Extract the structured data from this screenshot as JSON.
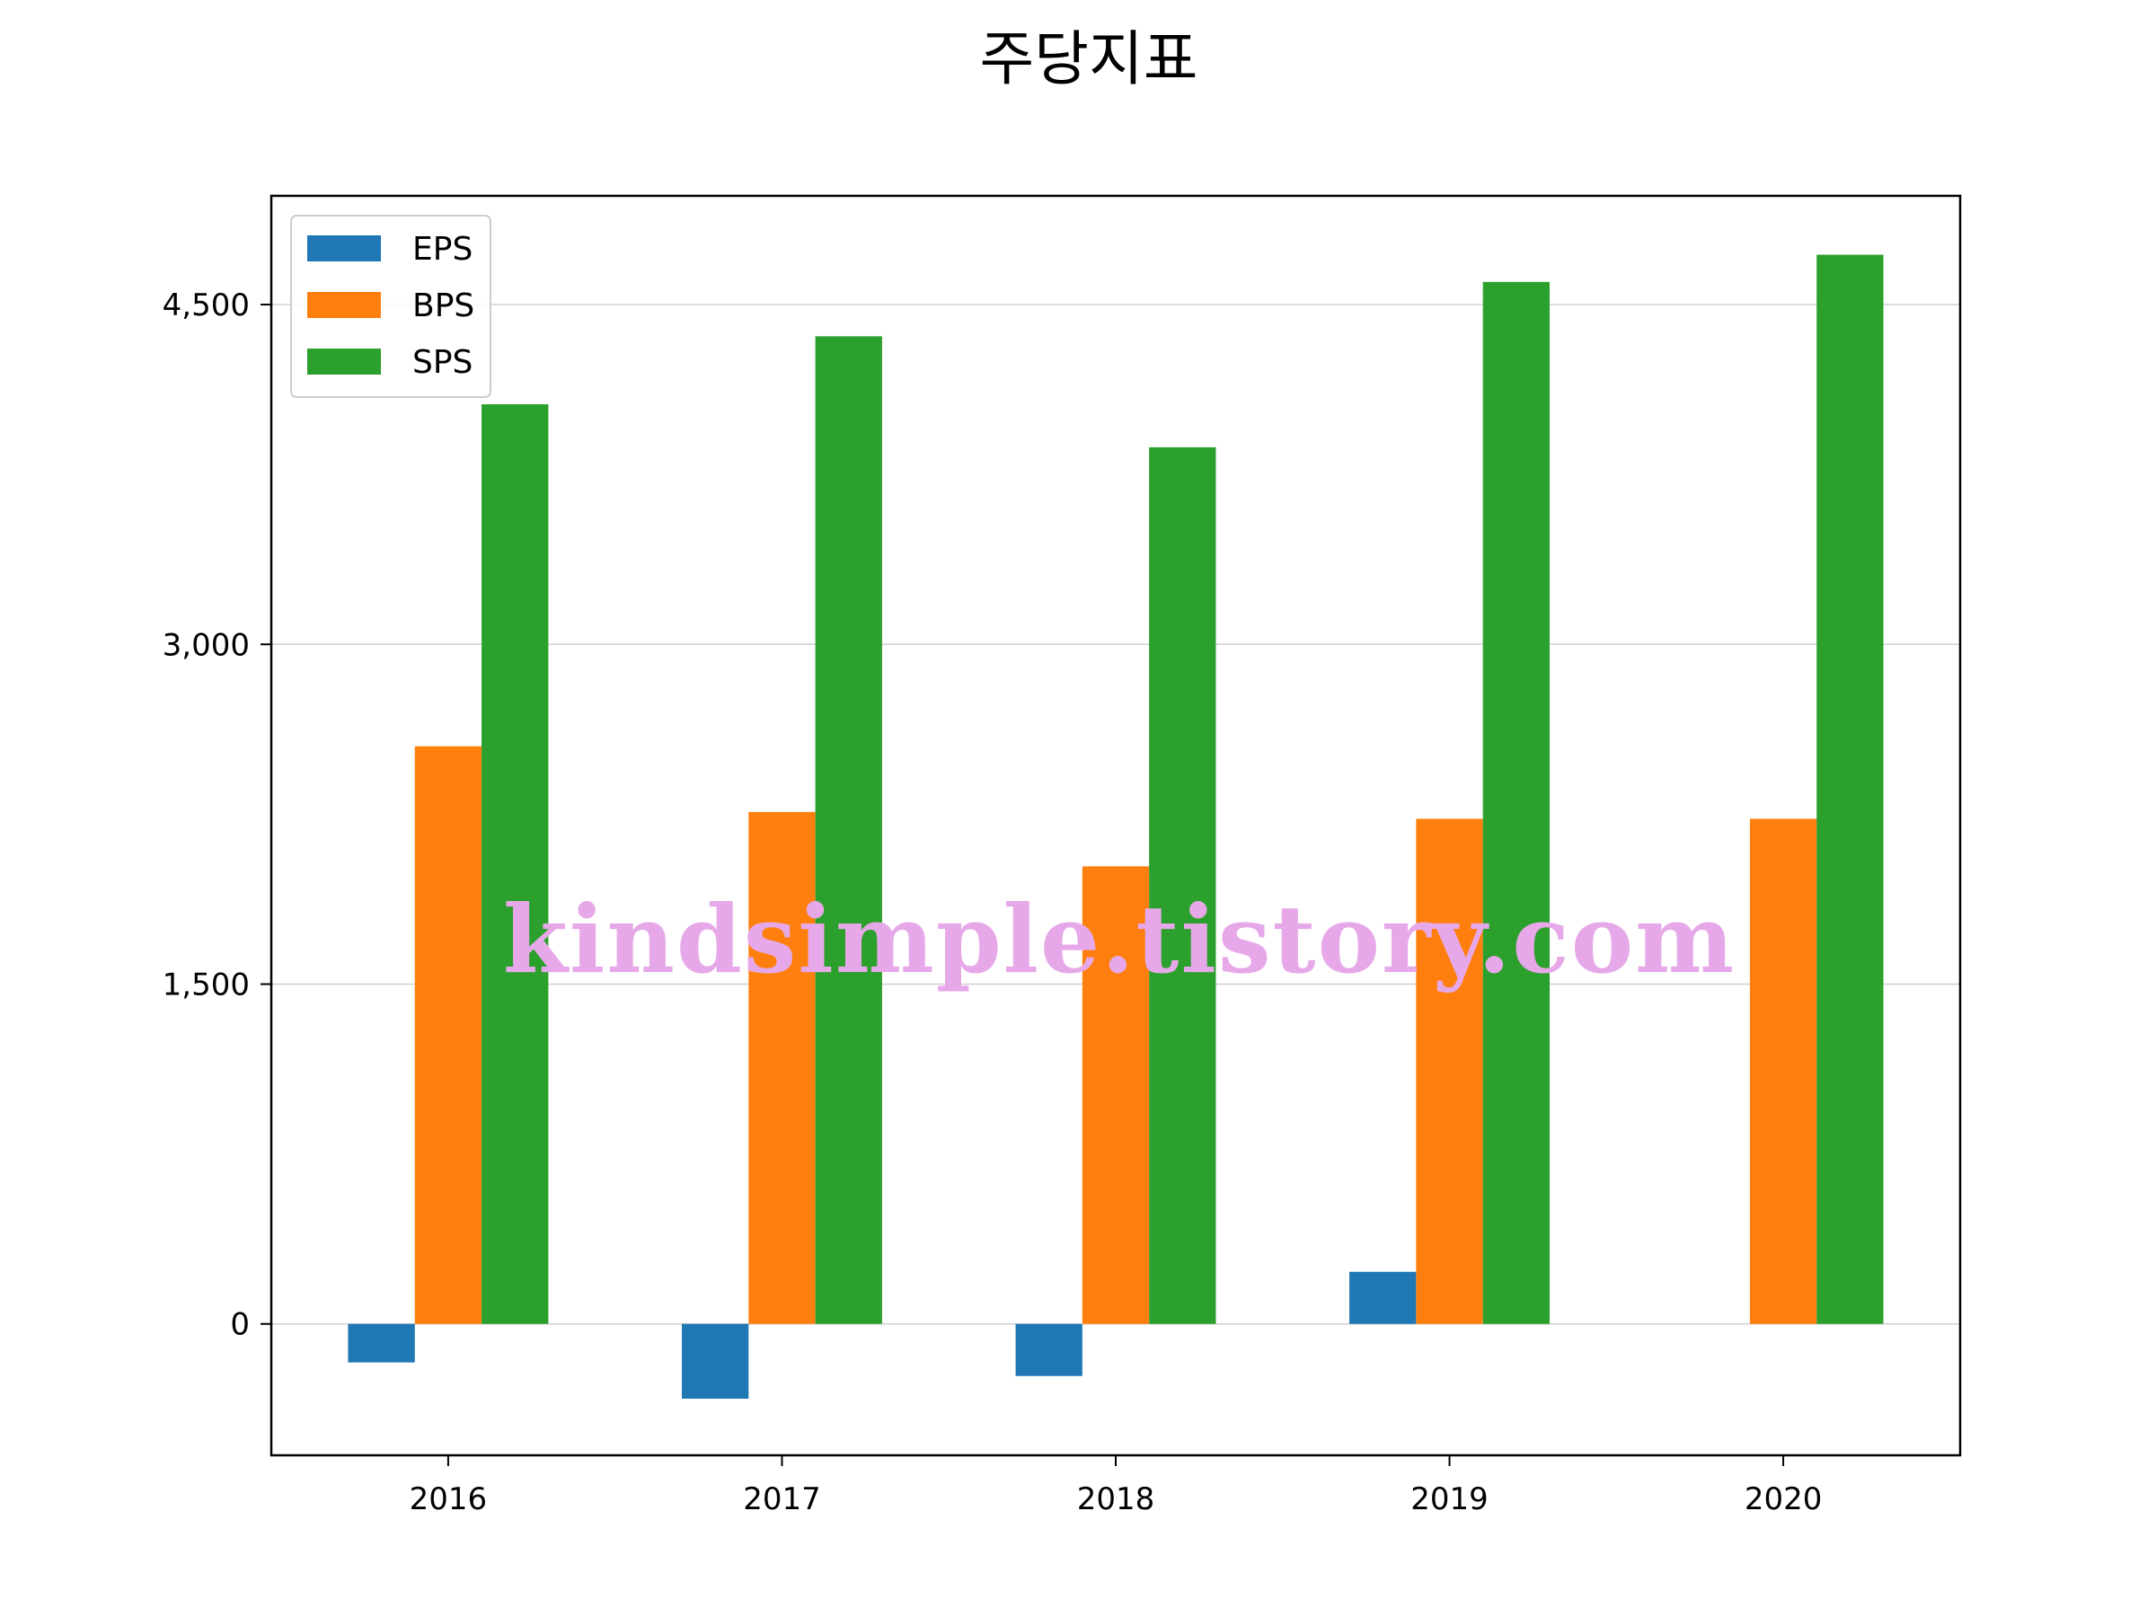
{
  "chart_data": {
    "type": "bar",
    "title": "주당지표",
    "xlabel": "",
    "ylabel": "",
    "categories": [
      "2016",
      "2017",
      "2018",
      "2019",
      "2020"
    ],
    "series": [
      {
        "name": "EPS",
        "color": "#1f77b4",
        "values": [
          -170,
          -330,
          -230,
          230,
          0
        ]
      },
      {
        "name": "BPS",
        "color": "#ff7f0e",
        "values": [
          2550,
          2260,
          2020,
          2230,
          2230
        ]
      },
      {
        "name": "SPS",
        "color": "#2ca02c",
        "values": [
          4060,
          4360,
          3870,
          4600,
          4720
        ]
      }
    ],
    "ylim": [
      -580,
      4980
    ],
    "yticks": [
      0,
      1500,
      3000,
      4500
    ],
    "ytick_labels": [
      "0",
      "1,500",
      "3,000",
      "4,500"
    ],
    "grid": "horizontal",
    "legend_position": "upper-left"
  },
  "watermark": {
    "text": "kindsimple.tistory.com",
    "color": "#e6a8e8"
  }
}
